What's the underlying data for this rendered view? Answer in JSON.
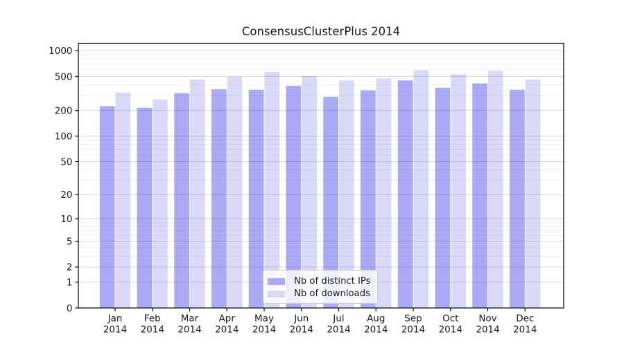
{
  "figure": {
    "title": "ConsensusClusterPlus 2014"
  },
  "chart_data": {
    "type": "bar",
    "title": "ConsensusClusterPlus 2014",
    "categories": [
      "Jan",
      "Feb",
      "Mar",
      "Apr",
      "May",
      "Jun",
      "Jul",
      "Aug",
      "Sep",
      "Oct",
      "Nov",
      "Dec"
    ],
    "year_label": "2014",
    "series": [
      {
        "name": "Nb of distinct IPs",
        "color": "#aaaaf6",
        "values": [
          225,
          215,
          320,
          355,
          350,
          390,
          290,
          345,
          450,
          370,
          415,
          350
        ]
      },
      {
        "name": "Nb of downloads",
        "color": "#dadaf8",
        "values": [
          325,
          270,
          460,
          495,
          565,
          505,
          450,
          475,
          590,
          530,
          580,
          460
        ]
      }
    ],
    "xlabel": "",
    "ylabel": "",
    "yscale": "log10(value+1)",
    "ylim": [
      0,
      1220
    ],
    "yticks": [
      0,
      1,
      2,
      5,
      10,
      20,
      50,
      100,
      200,
      500,
      1000
    ],
    "yminorticks": [
      3,
      4,
      6,
      7,
      8,
      9,
      30,
      40,
      60,
      70,
      80,
      90,
      300,
      400,
      600,
      700,
      800,
      900
    ],
    "grid": "horizontal, major and minor, drawn over bars",
    "legend_position": "lower center inside plot"
  },
  "legend": {
    "items": [
      {
        "label": "Nb of distinct IPs"
      },
      {
        "label": "Nb of downloads"
      }
    ]
  },
  "colors": {
    "distinct_ips": "#aaaaf6",
    "downloads": "#dadaf8",
    "axis": "#000000",
    "text": "#1a1a1a",
    "legend_border": "#cccccc"
  }
}
